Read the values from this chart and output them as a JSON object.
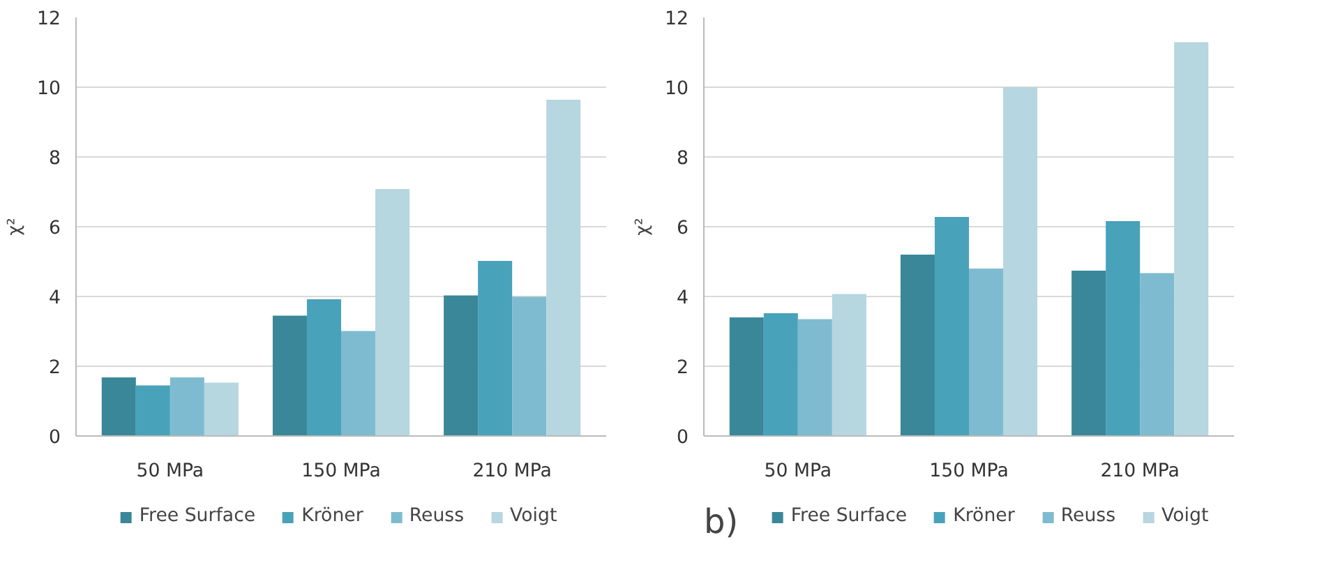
{
  "chart_data": [
    {
      "type": "bar",
      "ylabel": "χ²",
      "categories": [
        "50 MPa",
        "150 MPa",
        "210 MPa"
      ],
      "ylim": [
        0,
        12
      ],
      "yticks": [
        0,
        2,
        4,
        6,
        8,
        10,
        12
      ],
      "grid": "y",
      "legend": "bottom",
      "series": [
        {
          "name": "Free Surface",
          "color": "#3a8799",
          "values": [
            1.68,
            3.45,
            4.03
          ]
        },
        {
          "name": "Kröner",
          "color": "#48a2ba",
          "values": [
            1.45,
            3.92,
            5.02
          ]
        },
        {
          "name": "Reuss",
          "color": "#7fbbd0",
          "values": [
            1.68,
            3.01,
            3.99
          ]
        },
        {
          "name": "Voigt",
          "color": "#b6d6e0",
          "values": [
            1.53,
            7.08,
            9.64
          ]
        }
      ]
    },
    {
      "type": "bar",
      "ylabel": "χ²",
      "categories": [
        "50 MPa",
        "150 MPa",
        "210 MPa"
      ],
      "ylim": [
        0,
        12
      ],
      "yticks": [
        0,
        2,
        4,
        6,
        8,
        10,
        12
      ],
      "grid": "y",
      "legend": "bottom",
      "annotations": [
        "b)"
      ],
      "series": [
        {
          "name": "Free Surface",
          "color": "#3a8799",
          "values": [
            3.4,
            5.2,
            4.74
          ]
        },
        {
          "name": "Kröner",
          "color": "#48a2ba",
          "values": [
            3.52,
            6.28,
            6.16
          ]
        },
        {
          "name": "Reuss",
          "color": "#7fbbd0",
          "values": [
            3.35,
            4.8,
            4.67
          ]
        },
        {
          "name": "Voigt",
          "color": "#b6d6e0",
          "values": [
            4.07,
            10.0,
            11.29
          ]
        }
      ]
    }
  ]
}
